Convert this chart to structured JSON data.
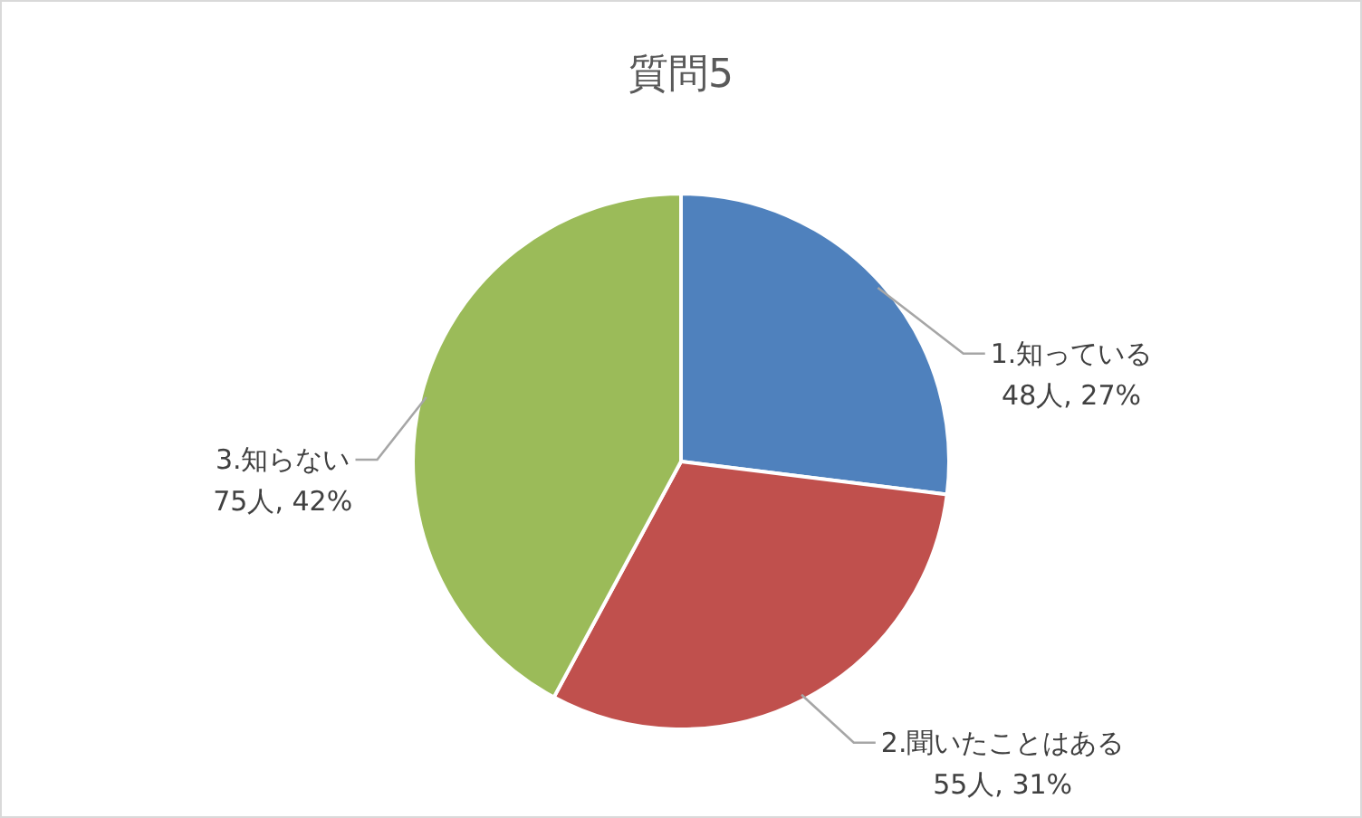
{
  "chart_data": {
    "type": "pie",
    "title": "質問5",
    "categories": [
      "1.知っている",
      "2.聞いたことはある",
      "3.知らない"
    ],
    "values": [
      48,
      55,
      75
    ],
    "value_labels": [
      "48人, 27%",
      "55人, 31%",
      "75人, 42%"
    ],
    "colors": [
      "#4f81bd",
      "#c0504d",
      "#9bbb59"
    ]
  }
}
